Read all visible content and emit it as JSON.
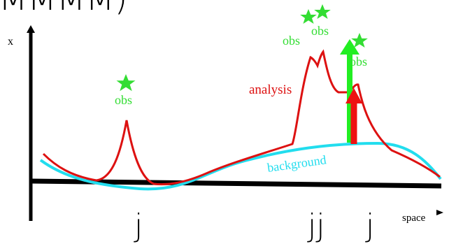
{
  "title_fragment": "MMMM)",
  "axes": {
    "y_label": "x",
    "x_label": "space"
  },
  "curves": {
    "analysis_label": "analysis",
    "background_label": "background"
  },
  "observations": [
    {
      "label": "obs"
    },
    {
      "label": "obs"
    },
    {
      "label": "obs"
    },
    {
      "label": "obs"
    }
  ],
  "j_markers": [
    "j",
    "jj",
    "j"
  ],
  "colors": {
    "axis": "#000000",
    "analysis": "#dd1111",
    "background": "#22ddee",
    "observation": "#33dd33",
    "increment_arrow": "#ee1111",
    "innovation_arrow": "#22ee22",
    "text": "#000000"
  }
}
